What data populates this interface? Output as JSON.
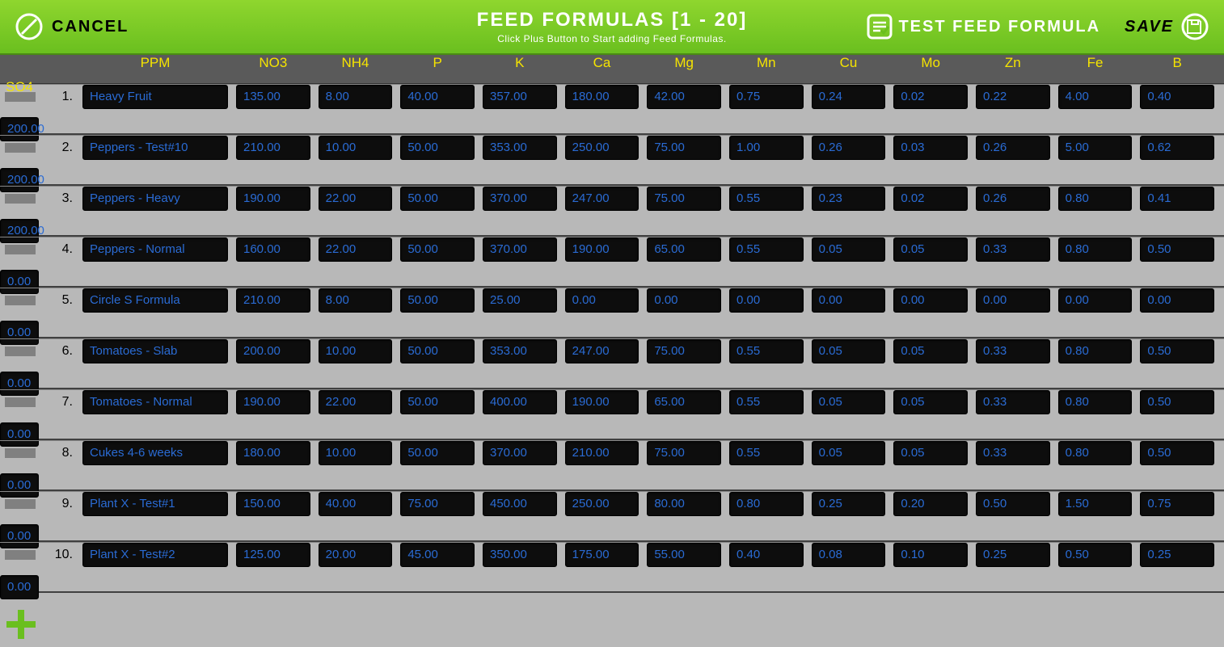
{
  "header": {
    "cancel_label": "CANCEL",
    "title": "FEED FORMULAS [1 - 20]",
    "subtitle": "Click Plus Button to Start adding Feed Formulas.",
    "test_label": "TEST FEED FORMULA",
    "save_label": "SAVE"
  },
  "colors": {
    "header_gradient_top": "#8fd62e",
    "header_gradient_bottom": "#6abf1f",
    "col_header_bg": "#5a5a5a",
    "col_header_text": "#f5e400",
    "body_bg": "#b8b8b8",
    "cell_bg": "#0d0d0d",
    "cell_text": "#2a6bd4",
    "plus_color": "#6abf1f",
    "save_icon_stroke": "#ffffff",
    "cancel_icon_stroke": "#ffffff",
    "test_icon_stroke": "#ffffff"
  },
  "columns": [
    "PPM",
    "NO3",
    "NH4",
    "P",
    "K",
    "Ca",
    "Mg",
    "Mn",
    "Cu",
    "Mo",
    "Zn",
    "Fe",
    "B",
    "SO4"
  ],
  "rows": [
    {
      "idx": "1.",
      "name": "Heavy Fruit",
      "v": [
        "135.00",
        "8.00",
        "40.00",
        "357.00",
        "180.00",
        "42.00",
        "0.75",
        "0.24",
        "0.02",
        "0.22",
        "4.00",
        "0.40",
        "200.00"
      ]
    },
    {
      "idx": "2.",
      "name": "Peppers - Test#10",
      "v": [
        "210.00",
        "10.00",
        "50.00",
        "353.00",
        "250.00",
        "75.00",
        "1.00",
        "0.26",
        "0.03",
        "0.26",
        "5.00",
        "0.62",
        "200.00"
      ]
    },
    {
      "idx": "3.",
      "name": "Peppers - Heavy",
      "v": [
        "190.00",
        "22.00",
        "50.00",
        "370.00",
        "247.00",
        "75.00",
        "0.55",
        "0.23",
        "0.02",
        "0.26",
        "0.80",
        "0.41",
        "200.00"
      ]
    },
    {
      "idx": "4.",
      "name": "Peppers - Normal",
      "v": [
        "160.00",
        "22.00",
        "50.00",
        "370.00",
        "190.00",
        "65.00",
        "0.55",
        "0.05",
        "0.05",
        "0.33",
        "0.80",
        "0.50",
        "0.00"
      ]
    },
    {
      "idx": "5.",
      "name": "Circle S Formula",
      "v": [
        "210.00",
        "8.00",
        "50.00",
        "25.00",
        "0.00",
        "0.00",
        "0.00",
        "0.00",
        "0.00",
        "0.00",
        "0.00",
        "0.00",
        "0.00"
      ]
    },
    {
      "idx": "6.",
      "name": "Tomatoes - Slab",
      "v": [
        "200.00",
        "10.00",
        "50.00",
        "353.00",
        "247.00",
        "75.00",
        "0.55",
        "0.05",
        "0.05",
        "0.33",
        "0.80",
        "0.50",
        "0.00"
      ]
    },
    {
      "idx": "7.",
      "name": "Tomatoes - Normal",
      "v": [
        "190.00",
        "22.00",
        "50.00",
        "400.00",
        "190.00",
        "65.00",
        "0.55",
        "0.05",
        "0.05",
        "0.33",
        "0.80",
        "0.50",
        "0.00"
      ]
    },
    {
      "idx": "8.",
      "name": "Cukes 4-6 weeks",
      "v": [
        "180.00",
        "10.00",
        "50.00",
        "370.00",
        "210.00",
        "75.00",
        "0.55",
        "0.05",
        "0.05",
        "0.33",
        "0.80",
        "0.50",
        "0.00"
      ]
    },
    {
      "idx": "9.",
      "name": "Plant X - Test#1",
      "v": [
        "150.00",
        "40.00",
        "75.00",
        "450.00",
        "250.00",
        "80.00",
        "0.80",
        "0.25",
        "0.20",
        "0.50",
        "1.50",
        "0.75",
        "0.00"
      ]
    },
    {
      "idx": "10.",
      "name": "Plant X - Test#2",
      "v": [
        "125.00",
        "20.00",
        "45.00",
        "350.00",
        "175.00",
        "55.00",
        "0.40",
        "0.08",
        "0.10",
        "0.25",
        "0.50",
        "0.25",
        "0.00"
      ]
    }
  ]
}
